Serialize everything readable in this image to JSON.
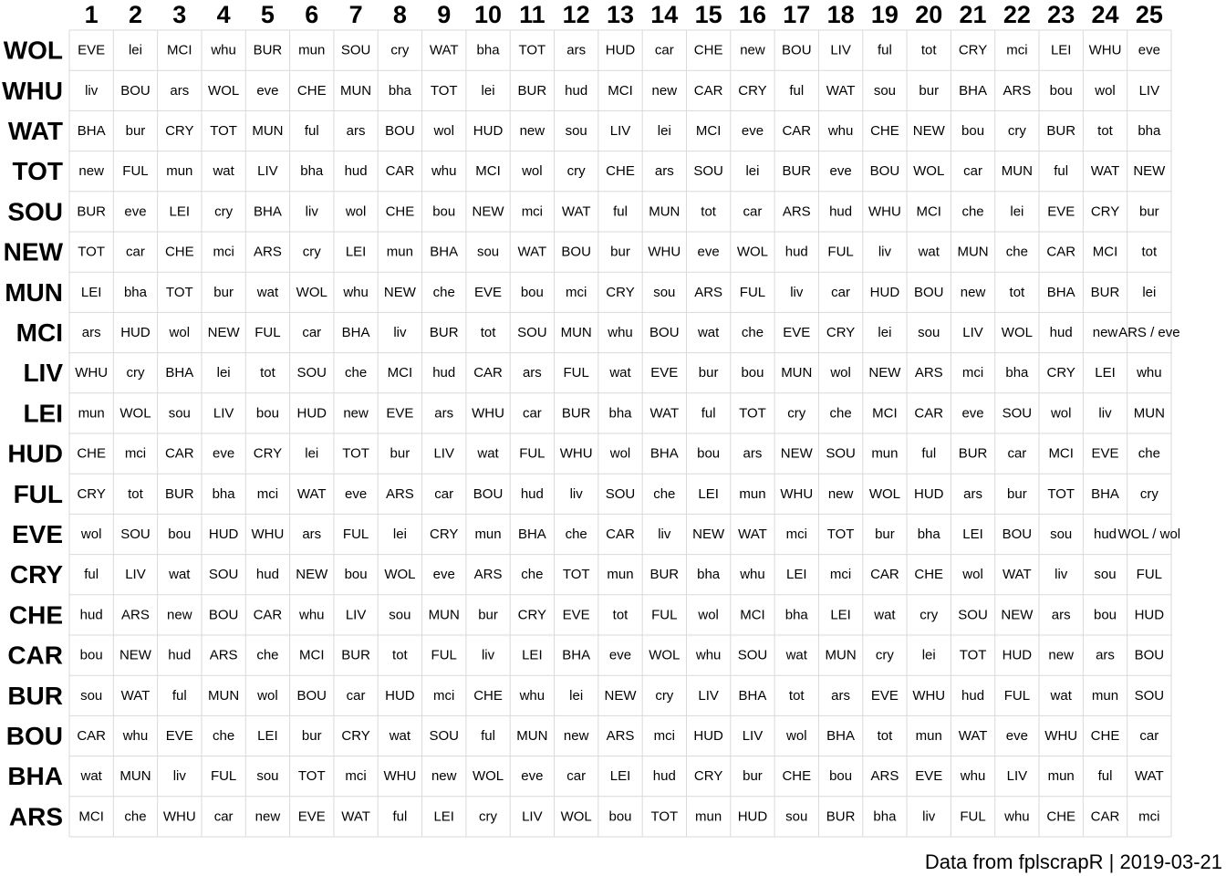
{
  "chart_data": {
    "type": "table",
    "columns": [
      "1",
      "2",
      "3",
      "4",
      "5",
      "6",
      "7",
      "8",
      "9",
      "10",
      "11",
      "12",
      "13",
      "14",
      "15",
      "16",
      "17",
      "18",
      "19",
      "20",
      "21",
      "22",
      "23",
      "24",
      "25"
    ],
    "rows": [
      "WOL",
      "WHU",
      "WAT",
      "TOT",
      "SOU",
      "NEW",
      "MUN",
      "MCI",
      "LIV",
      "LEI",
      "HUD",
      "FUL",
      "EVE",
      "CRY",
      "CHE",
      "CAR",
      "BUR",
      "BOU",
      "BHA",
      "ARS"
    ],
    "cells": [
      [
        "EVE",
        "lei",
        "MCI",
        "whu",
        "BUR",
        "mun",
        "SOU",
        "cry",
        "WAT",
        "bha",
        "TOT",
        "ars",
        "HUD",
        "car",
        "CHE",
        "new",
        "BOU",
        "LIV",
        "ful",
        "tot",
        "CRY",
        "mci",
        "LEI",
        "WHU",
        "eve"
      ],
      [
        "liv",
        "BOU",
        "ars",
        "WOL",
        "eve",
        "CHE",
        "MUN",
        "bha",
        "TOT",
        "lei",
        "BUR",
        "hud",
        "MCI",
        "new",
        "CAR",
        "CRY",
        "ful",
        "WAT",
        "sou",
        "bur",
        "BHA",
        "ARS",
        "bou",
        "wol",
        "LIV"
      ],
      [
        "BHA",
        "bur",
        "CRY",
        "TOT",
        "MUN",
        "ful",
        "ars",
        "BOU",
        "wol",
        "HUD",
        "new",
        "sou",
        "LIV",
        "lei",
        "MCI",
        "eve",
        "CAR",
        "whu",
        "CHE",
        "NEW",
        "bou",
        "cry",
        "BUR",
        "tot",
        "bha"
      ],
      [
        "new",
        "FUL",
        "mun",
        "wat",
        "LIV",
        "bha",
        "hud",
        "CAR",
        "whu",
        "MCI",
        "wol",
        "cry",
        "CHE",
        "ars",
        "SOU",
        "lei",
        "BUR",
        "eve",
        "BOU",
        "WOL",
        "car",
        "MUN",
        "ful",
        "WAT",
        "NEW"
      ],
      [
        "BUR",
        "eve",
        "LEI",
        "cry",
        "BHA",
        "liv",
        "wol",
        "CHE",
        "bou",
        "NEW",
        "mci",
        "WAT",
        "ful",
        "MUN",
        "tot",
        "car",
        "ARS",
        "hud",
        "WHU",
        "MCI",
        "che",
        "lei",
        "EVE",
        "CRY",
        "bur"
      ],
      [
        "TOT",
        "car",
        "CHE",
        "mci",
        "ARS",
        "cry",
        "LEI",
        "mun",
        "BHA",
        "sou",
        "WAT",
        "BOU",
        "bur",
        "WHU",
        "eve",
        "WOL",
        "hud",
        "FUL",
        "liv",
        "wat",
        "MUN",
        "che",
        "CAR",
        "MCI",
        "tot"
      ],
      [
        "LEI",
        "bha",
        "TOT",
        "bur",
        "wat",
        "WOL",
        "whu",
        "NEW",
        "che",
        "EVE",
        "bou",
        "mci",
        "CRY",
        "sou",
        "ARS",
        "FUL",
        "liv",
        "car",
        "HUD",
        "BOU",
        "new",
        "tot",
        "BHA",
        "BUR",
        "lei"
      ],
      [
        "ars",
        "HUD",
        "wol",
        "NEW",
        "FUL",
        "car",
        "BHA",
        "liv",
        "BUR",
        "tot",
        "SOU",
        "MUN",
        "whu",
        "BOU",
        "wat",
        "che",
        "EVE",
        "CRY",
        "lei",
        "sou",
        "LIV",
        "WOL",
        "hud",
        "new",
        "ARS / eve"
      ],
      [
        "WHU",
        "cry",
        "BHA",
        "lei",
        "tot",
        "SOU",
        "che",
        "MCI",
        "hud",
        "CAR",
        "ars",
        "FUL",
        "wat",
        "EVE",
        "bur",
        "bou",
        "MUN",
        "wol",
        "NEW",
        "ARS",
        "mci",
        "bha",
        "CRY",
        "LEI",
        "whu"
      ],
      [
        "mun",
        "WOL",
        "sou",
        "LIV",
        "bou",
        "HUD",
        "new",
        "EVE",
        "ars",
        "WHU",
        "car",
        "BUR",
        "bha",
        "WAT",
        "ful",
        "TOT",
        "cry",
        "che",
        "MCI",
        "CAR",
        "eve",
        "SOU",
        "wol",
        "liv",
        "MUN"
      ],
      [
        "CHE",
        "mci",
        "CAR",
        "eve",
        "CRY",
        "lei",
        "TOT",
        "bur",
        "LIV",
        "wat",
        "FUL",
        "WHU",
        "wol",
        "BHA",
        "bou",
        "ars",
        "NEW",
        "SOU",
        "mun",
        "ful",
        "BUR",
        "car",
        "MCI",
        "EVE",
        "che"
      ],
      [
        "CRY",
        "tot",
        "BUR",
        "bha",
        "mci",
        "WAT",
        "eve",
        "ARS",
        "car",
        "BOU",
        "hud",
        "liv",
        "SOU",
        "che",
        "LEI",
        "mun",
        "WHU",
        "new",
        "WOL",
        "HUD",
        "ars",
        "bur",
        "TOT",
        "BHA",
        "cry"
      ],
      [
        "wol",
        "SOU",
        "bou",
        "HUD",
        "WHU",
        "ars",
        "FUL",
        "lei",
        "CRY",
        "mun",
        "BHA",
        "che",
        "CAR",
        "liv",
        "NEW",
        "WAT",
        "mci",
        "TOT",
        "bur",
        "bha",
        "LEI",
        "BOU",
        "sou",
        "hud",
        "WOL / wol"
      ],
      [
        "ful",
        "LIV",
        "wat",
        "SOU",
        "hud",
        "NEW",
        "bou",
        "WOL",
        "eve",
        "ARS",
        "che",
        "TOT",
        "mun",
        "BUR",
        "bha",
        "whu",
        "LEI",
        "mci",
        "CAR",
        "CHE",
        "wol",
        "WAT",
        "liv",
        "sou",
        "FUL"
      ],
      [
        "hud",
        "ARS",
        "new",
        "BOU",
        "CAR",
        "whu",
        "LIV",
        "sou",
        "MUN",
        "bur",
        "CRY",
        "EVE",
        "tot",
        "FUL",
        "wol",
        "MCI",
        "bha",
        "LEI",
        "wat",
        "cry",
        "SOU",
        "NEW",
        "ars",
        "bou",
        "HUD"
      ],
      [
        "bou",
        "NEW",
        "hud",
        "ARS",
        "che",
        "MCI",
        "BUR",
        "tot",
        "FUL",
        "liv",
        "LEI",
        "BHA",
        "eve",
        "WOL",
        "whu",
        "SOU",
        "wat",
        "MUN",
        "cry",
        "lei",
        "TOT",
        "HUD",
        "new",
        "ars",
        "BOU"
      ],
      [
        "sou",
        "WAT",
        "ful",
        "MUN",
        "wol",
        "BOU",
        "car",
        "HUD",
        "mci",
        "CHE",
        "whu",
        "lei",
        "NEW",
        "cry",
        "LIV",
        "BHA",
        "tot",
        "ars",
        "EVE",
        "WHU",
        "hud",
        "FUL",
        "wat",
        "mun",
        "SOU"
      ],
      [
        "CAR",
        "whu",
        "EVE",
        "che",
        "LEI",
        "bur",
        "CRY",
        "wat",
        "SOU",
        "ful",
        "MUN",
        "new",
        "ARS",
        "mci",
        "HUD",
        "LIV",
        "wol",
        "BHA",
        "tot",
        "mun",
        "WAT",
        "eve",
        "WHU",
        "CHE",
        "car"
      ],
      [
        "wat",
        "MUN",
        "liv",
        "FUL",
        "sou",
        "TOT",
        "mci",
        "WHU",
        "new",
        "WOL",
        "eve",
        "car",
        "LEI",
        "hud",
        "CRY",
        "bur",
        "CHE",
        "bou",
        "ARS",
        "EVE",
        "whu",
        "LIV",
        "mun",
        "ful",
        "WAT"
      ],
      [
        "MCI",
        "che",
        "WHU",
        "car",
        "new",
        "EVE",
        "WAT",
        "ful",
        "LEI",
        "cry",
        "LIV",
        "WOL",
        "bou",
        "TOT",
        "mun",
        "HUD",
        "sou",
        "BUR",
        "bha",
        "liv",
        "FUL",
        "whu",
        "CHE",
        "CAR",
        "mci"
      ]
    ],
    "grid": true
  },
  "footer": {
    "caption": "Data from fplscrapR | 2019-03-21"
  },
  "colors": {
    "gridline": "#d9d9d9",
    "text": "#000000",
    "background": "#ffffff"
  }
}
